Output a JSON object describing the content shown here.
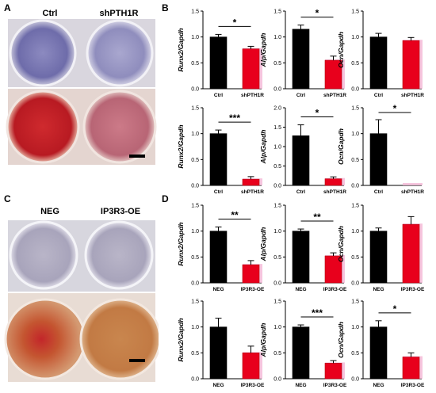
{
  "panels": {
    "A": {
      "letter": "A",
      "label_left": "Ctrl",
      "label_right": "shPTH1R"
    },
    "B": {
      "letter": "B"
    },
    "C": {
      "letter": "C",
      "label_left": "NEG",
      "label_right": "IP3R3-OE"
    },
    "D": {
      "letter": "D"
    }
  },
  "colors": {
    "ctrl": "#000000",
    "treat": "#e8001c",
    "treat_dark": "#b5000f",
    "highlight": "#f4b6d6",
    "alp_stain": "#6b6aa8",
    "ars_stain": "#c8202a",
    "alp_stain_c": "#7a7596",
    "ars_stain_c": "#c26a30"
  },
  "chart_data": [
    {
      "type": "bar",
      "panel": "B",
      "row": 0,
      "col": 0,
      "ylabel": "Runx2/Gapdh",
      "categories": [
        "Ctrl",
        "shPTH1R"
      ],
      "values": [
        1.0,
        0.77
      ],
      "errors": [
        0.05,
        0.05
      ],
      "yticks": [
        "0.0",
        "0.5",
        "1.0",
        "1.5"
      ],
      "ylim": [
        0,
        1.5
      ],
      "sig": "*"
    },
    {
      "type": "bar",
      "panel": "B",
      "row": 0,
      "col": 1,
      "ylabel": "Alp/Gapdh",
      "categories": [
        "Ctrl",
        "shPTH1R"
      ],
      "values": [
        1.15,
        0.55
      ],
      "errors": [
        0.08,
        0.08
      ],
      "yticks": [
        "0.0",
        "0.5",
        "1.0",
        "1.5"
      ],
      "ylim": [
        0,
        1.5
      ],
      "sig": "*"
    },
    {
      "type": "bar",
      "panel": "B",
      "row": 0,
      "col": 2,
      "ylabel": "Ocn/Gapdh",
      "categories": [
        "Ctrl",
        "shPTH1R"
      ],
      "values": [
        1.0,
        0.93
      ],
      "errors": [
        0.07,
        0.06
      ],
      "yticks": [
        "0.0",
        "0.5",
        "1.0",
        "1.5"
      ],
      "ylim": [
        0,
        1.5
      ],
      "sig": ""
    },
    {
      "type": "bar",
      "panel": "B",
      "row": 1,
      "col": 0,
      "ylabel": "Runx2/Gapdh",
      "categories": [
        "Ctrl",
        "shPTH1R"
      ],
      "values": [
        1.0,
        0.12
      ],
      "errors": [
        0.07,
        0.05
      ],
      "yticks": [
        "0.0",
        "0.5",
        "1.0",
        "1.5"
      ],
      "ylim": [
        0,
        1.5
      ],
      "sig": "***"
    },
    {
      "type": "bar",
      "panel": "B",
      "row": 1,
      "col": 1,
      "ylabel": "Alp/Gapdh",
      "categories": [
        "Ctrl",
        "shPTH1R"
      ],
      "values": [
        1.28,
        0.17
      ],
      "errors": [
        0.28,
        0.05
      ],
      "yticks": [
        "0.0",
        "0.5",
        "1.0",
        "1.5",
        "2.0"
      ],
      "ylim": [
        0,
        2.0
      ],
      "sig": "*"
    },
    {
      "type": "bar",
      "panel": "B",
      "row": 1,
      "col": 2,
      "ylabel": "Ocn/Gapdh",
      "categories": [
        "Ctrl",
        "shPTH1R"
      ],
      "values": [
        1.0,
        0.0
      ],
      "errors": [
        0.27,
        0.0
      ],
      "yticks": [
        "0.0",
        "0.5",
        "1.0",
        "1.5"
      ],
      "ylim": [
        0,
        1.5
      ],
      "sig": "*"
    },
    {
      "type": "bar",
      "panel": "D",
      "row": 0,
      "col": 0,
      "ylabel": "Runx2/Gapdh",
      "categories": [
        "NEG",
        "IP3R3-OE"
      ],
      "values": [
        1.0,
        0.35
      ],
      "errors": [
        0.08,
        0.08
      ],
      "yticks": [
        "0.0",
        "0.5",
        "1.0",
        "1.5"
      ],
      "ylim": [
        0,
        1.5
      ],
      "sig": "**"
    },
    {
      "type": "bar",
      "panel": "D",
      "row": 0,
      "col": 1,
      "ylabel": "Alp/Gapdh",
      "categories": [
        "NEG",
        "IP3R3-OE"
      ],
      "values": [
        1.0,
        0.52
      ],
      "errors": [
        0.04,
        0.06
      ],
      "yticks": [
        "0.0",
        "0.5",
        "1.0",
        "1.5"
      ],
      "ylim": [
        0,
        1.5
      ],
      "sig": "**"
    },
    {
      "type": "bar",
      "panel": "D",
      "row": 0,
      "col": 2,
      "ylabel": "Ocn/Gapdh",
      "categories": [
        "NEG",
        "IP3R3-OE"
      ],
      "values": [
        1.0,
        1.13
      ],
      "errors": [
        0.06,
        0.15
      ],
      "yticks": [
        "0.0",
        "0.5",
        "1.0",
        "1.5"
      ],
      "ylim": [
        0,
        1.5
      ],
      "sig": ""
    },
    {
      "type": "bar",
      "panel": "D",
      "row": 1,
      "col": 0,
      "ylabel": "Runx2/Gapdh",
      "categories": [
        "NEG",
        "IP3R3-OE"
      ],
      "values": [
        1.0,
        0.5
      ],
      "errors": [
        0.17,
        0.13
      ],
      "yticks": [
        "0.0",
        "0.5",
        "1.0",
        "1.5"
      ],
      "ylim": [
        0,
        1.5
      ],
      "sig": ""
    },
    {
      "type": "bar",
      "panel": "D",
      "row": 1,
      "col": 1,
      "ylabel": "Alp/Gapdh",
      "categories": [
        "NEG",
        "IP3R3-OE"
      ],
      "values": [
        1.0,
        0.3
      ],
      "errors": [
        0.04,
        0.05
      ],
      "yticks": [
        "0.0",
        "0.5",
        "1.0",
        "1.5"
      ],
      "ylim": [
        0,
        1.5
      ],
      "sig": "***"
    },
    {
      "type": "bar",
      "panel": "D",
      "row": 1,
      "col": 2,
      "ylabel": "Ocn/Gapdh",
      "categories": [
        "NEG",
        "IP3R3-OE"
      ],
      "values": [
        1.0,
        0.42
      ],
      "errors": [
        0.12,
        0.08
      ],
      "yticks": [
        "0.0",
        "0.5",
        "1.0",
        "1.5"
      ],
      "ylim": [
        0,
        1.5
      ],
      "sig": "*"
    }
  ]
}
